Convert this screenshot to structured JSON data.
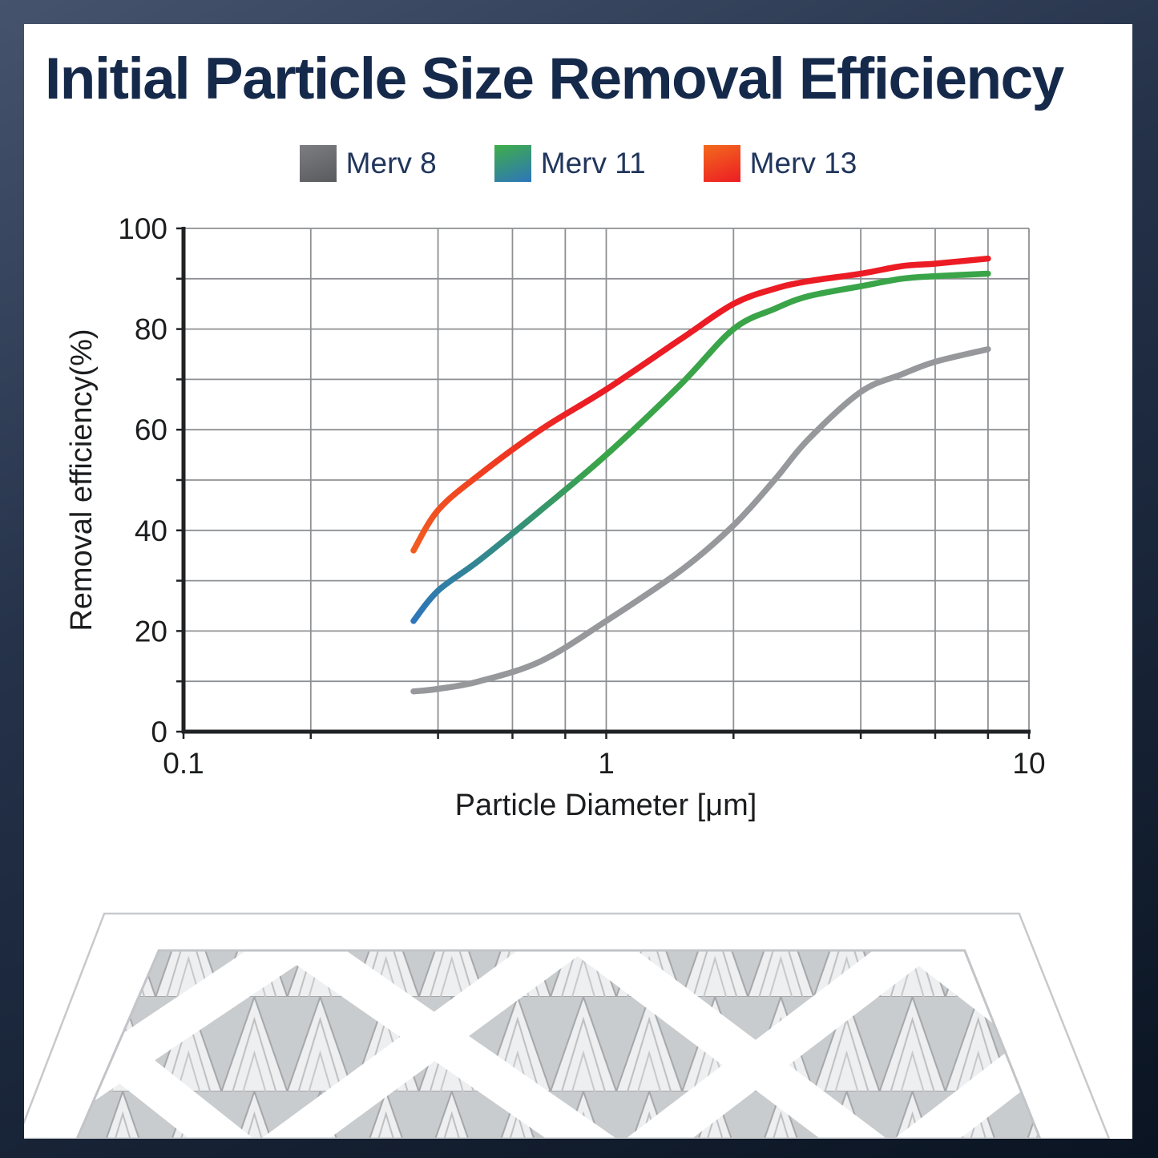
{
  "page": {
    "title": "Initial Particle Size Removal Efficiency"
  },
  "legend": [
    {
      "label": "Merv 8",
      "color_start": "#7d7e81",
      "color_end": "#595a5d"
    },
    {
      "label": "Merv 11",
      "color_start": "#3fae49",
      "color_end": "#2e75bb"
    },
    {
      "label": "Merv 13",
      "color_start": "#f36a1d",
      "color_end": "#ec1c24"
    }
  ],
  "chart_data": {
    "type": "line",
    "title": "Initial Particle Size Removal Efficiency",
    "xlabel": "Particle Diameter [μm]",
    "ylabel": "Removal efficiency(%)",
    "xscale": "log",
    "xlim": [
      0.1,
      10
    ],
    "ylim": [
      0,
      100
    ],
    "grid": true,
    "legend_position": "top",
    "x_gridlines": [
      0.1,
      0.2,
      0.4,
      0.6,
      0.8,
      1,
      2,
      4,
      6,
      8,
      10
    ],
    "y_gridlines": [
      0,
      10,
      20,
      30,
      40,
      50,
      60,
      70,
      80,
      90,
      100
    ],
    "x_ticks": [
      {
        "value": 0.1,
        "label": "0.1"
      },
      {
        "value": 1,
        "label": "1"
      },
      {
        "value": 10,
        "label": "10"
      }
    ],
    "y_ticks": [
      {
        "value": 0,
        "label": "0"
      },
      {
        "value": 20,
        "label": "20"
      },
      {
        "value": 40,
        "label": "40"
      },
      {
        "value": 60,
        "label": "60"
      },
      {
        "value": 80,
        "label": "80"
      },
      {
        "value": 100,
        "label": "100"
      }
    ],
    "series": [
      {
        "name": "Merv 8",
        "color": "#96989b",
        "x": [
          0.35,
          0.4,
          0.5,
          0.7,
          1,
          1.5,
          2,
          2.5,
          3,
          4,
          5,
          6,
          8
        ],
        "y": [
          8,
          8.5,
          10,
          14,
          22,
          32,
          41,
          50,
          58,
          67.5,
          71,
          73.5,
          76
        ]
      },
      {
        "name": "Merv 11",
        "color_start": "#2e75bb",
        "color_end": "#3aa449",
        "x": [
          0.35,
          0.4,
          0.5,
          0.7,
          1,
          1.5,
          2,
          2.5,
          3,
          4,
          5,
          6,
          8
        ],
        "y": [
          22,
          28,
          34,
          44,
          55,
          69,
          80,
          84,
          86.5,
          88.5,
          90,
          90.5,
          91
        ]
      },
      {
        "name": "Merv 13",
        "color_start": "#f25c1f",
        "color_end": "#ec1c24",
        "x": [
          0.35,
          0.4,
          0.5,
          0.7,
          1,
          1.5,
          2,
          2.5,
          3,
          4,
          5,
          6,
          8
        ],
        "y": [
          36,
          44,
          51,
          60,
          68,
          78,
          85,
          88,
          89.5,
          91,
          92.5,
          93,
          94
        ]
      }
    ]
  }
}
